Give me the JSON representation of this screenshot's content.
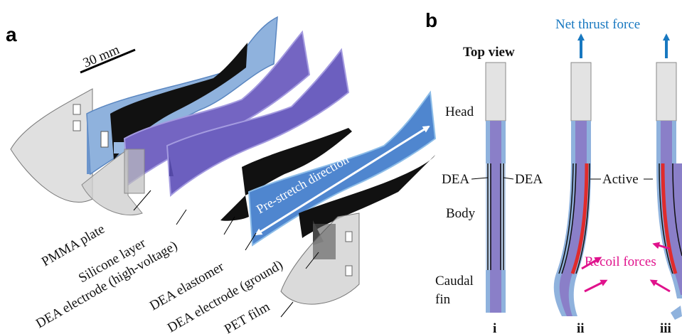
{
  "panel_a": {
    "letter": "a",
    "scale_bar": "30 mm",
    "layers": [
      "PMMA plate",
      "Silicone layer",
      "DEA electrode (high-voltage)",
      "DEA elastomer",
      "DEA electrode (ground)",
      "PET film"
    ],
    "annotation": "Pre-stretch direction"
  },
  "panel_b": {
    "letter": "b",
    "top_view": "Top view",
    "net_thrust": "Net thrust force",
    "head": "Head",
    "dea_left": "DEA",
    "dea_right": "DEA",
    "body": "Body",
    "caudal": "Caudal",
    "fin": "fin",
    "active": "Active",
    "recoil": "Recoil forces",
    "states": [
      "i",
      "ii",
      "iii"
    ]
  },
  "colors": {
    "pmma": "#7fa7d8",
    "silicone": "#6f62b8",
    "electrode": "#111111",
    "elastomer": "#5c8fd0",
    "film": "#c9c9c9",
    "active": "#e02b2b",
    "thrust": "#1878c0",
    "recoil": "#e0128c"
  }
}
